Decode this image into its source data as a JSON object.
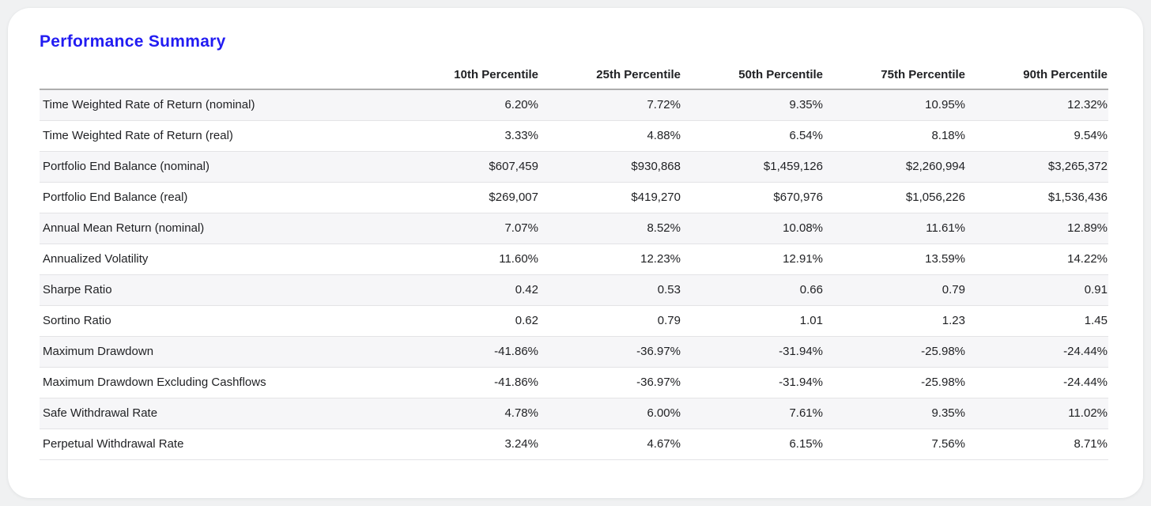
{
  "page": {
    "title": "Performance Summary"
  },
  "table": {
    "columns": [
      "10th Percentile",
      "25th Percentile",
      "50th Percentile",
      "75th Percentile",
      "90th Percentile"
    ],
    "rows": [
      {
        "label": "Time Weighted Rate of Return (nominal)",
        "values": [
          "6.20%",
          "7.72%",
          "9.35%",
          "10.95%",
          "12.32%"
        ]
      },
      {
        "label": "Time Weighted Rate of Return (real)",
        "values": [
          "3.33%",
          "4.88%",
          "6.54%",
          "8.18%",
          "9.54%"
        ]
      },
      {
        "label": "Portfolio End Balance (nominal)",
        "values": [
          "$607,459",
          "$930,868",
          "$1,459,126",
          "$2,260,994",
          "$3,265,372"
        ]
      },
      {
        "label": "Portfolio End Balance (real)",
        "values": [
          "$269,007",
          "$419,270",
          "$670,976",
          "$1,056,226",
          "$1,536,436"
        ]
      },
      {
        "label": "Annual Mean Return (nominal)",
        "values": [
          "7.07%",
          "8.52%",
          "10.08%",
          "11.61%",
          "12.89%"
        ]
      },
      {
        "label": "Annualized Volatility",
        "values": [
          "11.60%",
          "12.23%",
          "12.91%",
          "13.59%",
          "14.22%"
        ]
      },
      {
        "label": "Sharpe Ratio",
        "values": [
          "0.42",
          "0.53",
          "0.66",
          "0.79",
          "0.91"
        ]
      },
      {
        "label": "Sortino Ratio",
        "values": [
          "0.62",
          "0.79",
          "1.01",
          "1.23",
          "1.45"
        ]
      },
      {
        "label": "Maximum Drawdown",
        "values": [
          "-41.86%",
          "-36.97%",
          "-31.94%",
          "-25.98%",
          "-24.44%"
        ]
      },
      {
        "label": "Maximum Drawdown Excluding Cashflows",
        "values": [
          "-41.86%",
          "-36.97%",
          "-31.94%",
          "-25.98%",
          "-24.44%"
        ]
      },
      {
        "label": "Safe Withdrawal Rate",
        "values": [
          "4.78%",
          "6.00%",
          "7.61%",
          "9.35%",
          "11.02%"
        ]
      },
      {
        "label": "Perpetual Withdrawal Rate",
        "values": [
          "3.24%",
          "4.67%",
          "6.15%",
          "7.56%",
          "8.71%"
        ]
      }
    ]
  },
  "colors": {
    "title": "#221cf2",
    "text": "#1f2023",
    "page_bg": "#f0f1f2",
    "card_bg": "#ffffff",
    "row_stripe": "#f6f6f8",
    "header_border": "#adadad",
    "row_border": "#e3e3e6"
  }
}
